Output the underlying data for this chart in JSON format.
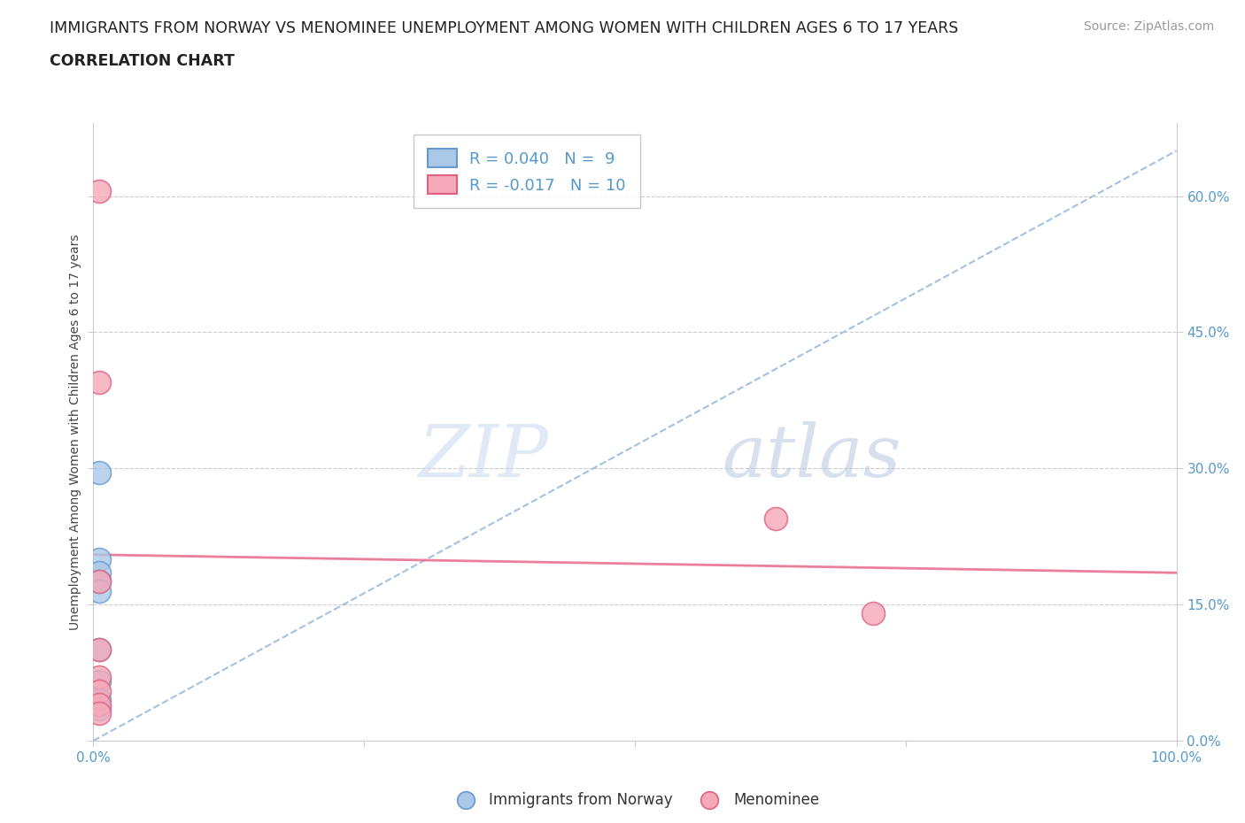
{
  "title_line1": "IMMIGRANTS FROM NORWAY VS MENOMINEE UNEMPLOYMENT AMONG WOMEN WITH CHILDREN AGES 6 TO 17 YEARS",
  "title_line2": "CORRELATION CHART",
  "source_text": "Source: ZipAtlas.com",
  "ylabel": "Unemployment Among Women with Children Ages 6 to 17 years",
  "xlim": [
    0.0,
    1.0
  ],
  "ylim": [
    0.0,
    0.68
  ],
  "ytick_values": [
    0.0,
    0.15,
    0.3,
    0.45,
    0.6
  ],
  "norway_R": 0.04,
  "norway_N": 9,
  "menominee_R": -0.017,
  "menominee_N": 10,
  "norway_color": "#aac8e8",
  "menominee_color": "#f5a8b8",
  "norway_edge_color": "#6699cc",
  "menominee_edge_color": "#e06080",
  "norway_trend_color": "#99bbdd",
  "menominee_trend_color": "#e87090",
  "norway_scatter_x": [
    0.005,
    0.005,
    0.005,
    0.005,
    0.005,
    0.005,
    0.005,
    0.005,
    0.005
  ],
  "norway_scatter_y": [
    0.295,
    0.2,
    0.185,
    0.175,
    0.165,
    0.1,
    0.065,
    0.045,
    0.035
  ],
  "menominee_scatter_x": [
    0.005,
    0.005,
    0.005,
    0.005,
    0.005,
    0.005,
    0.005,
    0.005,
    0.63,
    0.72
  ],
  "menominee_scatter_y": [
    0.605,
    0.395,
    0.175,
    0.1,
    0.07,
    0.055,
    0.04,
    0.03,
    0.245,
    0.14
  ],
  "norway_trend_x": [
    0.0,
    1.0
  ],
  "norway_trend_y": [
    0.0,
    0.65
  ],
  "menominee_trend_x": [
    0.0,
    1.0
  ],
  "menominee_trend_y": [
    0.205,
    0.185
  ],
  "watermark_zip": "ZIP",
  "watermark_atlas": "atlas",
  "background_color": "#ffffff",
  "grid_color": "#cccccc",
  "title_color": "#222222",
  "axis_label_color": "#5599cc",
  "ylabel_color": "#444444",
  "source_color": "#999999",
  "bottom_legend_color": "#333333"
}
